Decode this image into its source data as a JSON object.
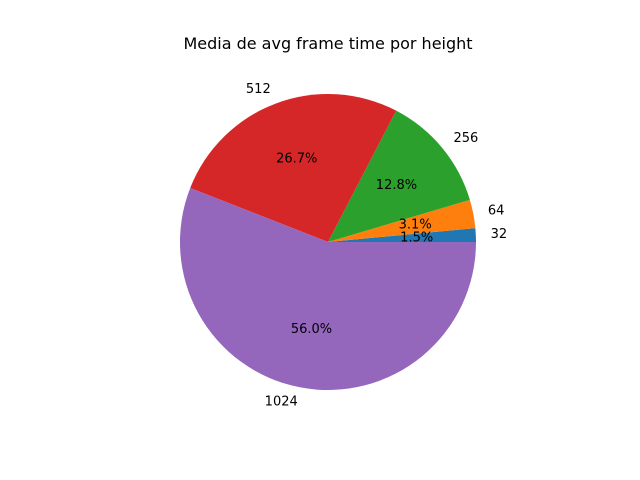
{
  "chart_data": {
    "type": "pie",
    "title": "Media de avg frame time por height",
    "categories": [
      "32",
      "64",
      "256",
      "512",
      "1024"
    ],
    "values": [
      1.5,
      3.1,
      12.8,
      26.7,
      56.0
    ],
    "percent_labels": [
      "1.5%",
      "3.1%",
      "12.8%",
      "26.7%",
      "56.0%"
    ],
    "colors": [
      "#1f77b4",
      "#ff7f0e",
      "#2ca02c",
      "#d62728",
      "#9467bd"
    ],
    "start_angle_deg": 0,
    "direction": "counterclockwise"
  }
}
